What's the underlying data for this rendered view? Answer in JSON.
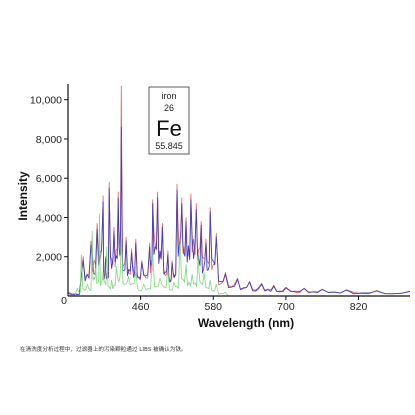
{
  "chart_data": {
    "type": "line",
    "title": "",
    "xlabel": "Wavelength (nm)",
    "ylabel": "Intensity",
    "xlim": [
      340,
      905
    ],
    "ylim": [
      0,
      10800
    ],
    "x_ticks": [
      460,
      580,
      700,
      820
    ],
    "y_ticks": [
      2000,
      4000,
      6000,
      8000,
      10000
    ],
    "x_tick_labels": [
      "460",
      "580",
      "700",
      "820"
    ],
    "y_tick_labels": [
      "2,000",
      "4,000",
      "6,000",
      "8,000",
      "10,000"
    ],
    "origin_label": "0",
    "grid": false,
    "legend": "none",
    "series": [
      {
        "color": "#e06060",
        "x": [
          340,
          365,
          378,
          388,
          398,
          402,
          408,
          416,
          423,
          428,
          436,
          445,
          452,
          462,
          475,
          480,
          488,
          496,
          505,
          512,
          520,
          528,
          535,
          543,
          552,
          560,
          568,
          575,
          585,
          600,
          620,
          640,
          660,
          680,
          700,
          730,
          760,
          800,
          850,
          905
        ],
        "y": [
          200,
          2000,
          2800,
          3700,
          5100,
          2000,
          5800,
          3500,
          5300,
          10700,
          3000,
          2400,
          2900,
          1800,
          2700,
          4900,
          5300,
          3700,
          2300,
          1800,
          5700,
          5000,
          4000,
          5200,
          4700,
          3800,
          2900,
          4500,
          3200,
          1200,
          900,
          750,
          650,
          550,
          450,
          400,
          350,
          320,
          280,
          250
        ]
      },
      {
        "color": "#4a3fb0",
        "x": [
          340,
          365,
          378,
          388,
          398,
          402,
          408,
          416,
          423,
          428,
          436,
          445,
          452,
          462,
          475,
          480,
          488,
          496,
          505,
          512,
          520,
          528,
          535,
          543,
          552,
          560,
          568,
          575,
          585,
          600,
          620,
          640,
          660,
          680,
          700,
          730,
          760,
          800,
          850,
          905
        ],
        "y": [
          150,
          1800,
          2600,
          3400,
          4800,
          1900,
          5500,
          3300,
          5000,
          8600,
          2800,
          2200,
          2700,
          1700,
          2500,
          4700,
          5000,
          3500,
          2100,
          1700,
          5400,
          4700,
          3800,
          4900,
          4400,
          3600,
          2700,
          4300,
          3000,
          1100,
          850,
          700,
          600,
          500,
          420,
          380,
          330,
          300,
          260,
          230
        ]
      },
      {
        "color": "#7fd67f",
        "x": [
          340,
          355,
          362,
          372,
          380,
          386,
          392,
          398,
          404,
          412,
          420,
          428,
          440,
          452,
          465,
          480,
          492,
          505,
          515,
          525,
          535,
          545,
          555,
          565,
          575,
          585,
          600,
          620
        ],
        "y": [
          0,
          400,
          2100,
          600,
          3300,
          1400,
          4200,
          1200,
          2500,
          800,
          1500,
          2900,
          1000,
          1200,
          600,
          2200,
          900,
          1400,
          700,
          3000,
          1600,
          1100,
          2000,
          1200,
          800,
          600,
          200,
          0
        ]
      }
    ],
    "inset": {
      "name": "iron",
      "atomic_number": "26",
      "symbol": "Fe",
      "mass": "55.845"
    }
  },
  "caption": "在清洗度分析过程中，过滤器上的污染颗粒通过 LIBS 被确认为铁。"
}
